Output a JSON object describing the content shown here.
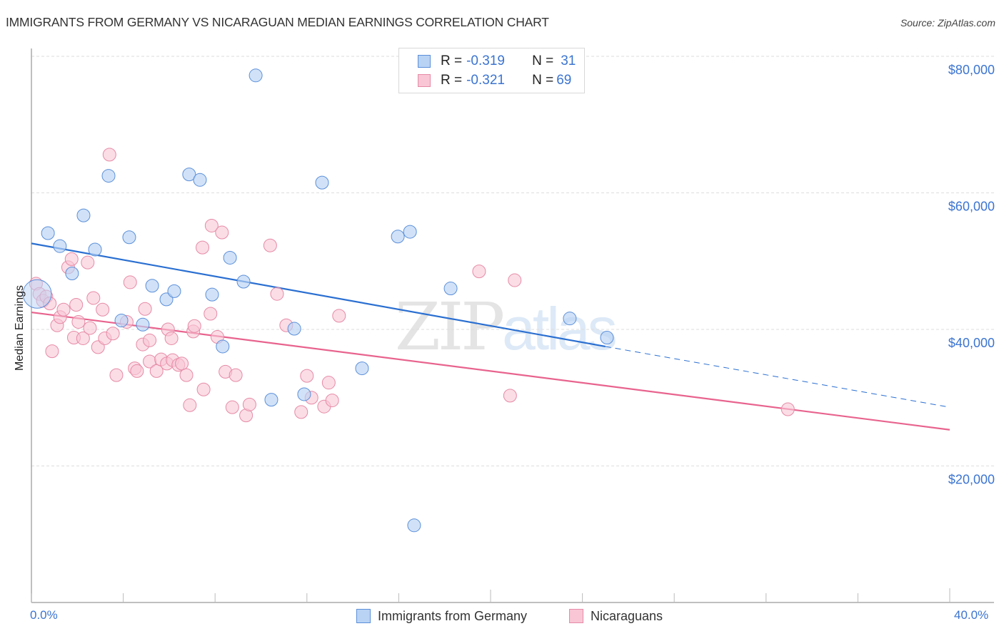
{
  "header": {
    "title": "IMMIGRANTS FROM GERMANY VS NICARAGUAN MEDIAN EARNINGS CORRELATION CHART",
    "source": "Source: ZipAtlas.com"
  },
  "stats": [
    {
      "r_label": "R = ",
      "r_value": "-0.319",
      "n_label": "N = ",
      "n_value": "31"
    },
    {
      "r_label": "R = ",
      "r_value": "-0.321",
      "n_label": "N = ",
      "n_value": "69"
    }
  ],
  "watermark": {
    "part1": "ZIP",
    "part2": "atlas"
  },
  "colors": {
    "germany_fill": "#b9d3f5",
    "germany_stroke": "#5b8fd9",
    "germany_line": "#2a6fd1",
    "nicaraguan_fill": "#f9c6d5",
    "nicaraguan_stroke": "#e68aa6",
    "nicaraguan_line": "#e8638e",
    "tick_text": "#3b74d1"
  },
  "chart_data": {
    "type": "scatter",
    "title": "IMMIGRANTS FROM GERMANY VS NICARAGUAN MEDIAN EARNINGS CORRELATION CHART",
    "xlabel": "",
    "ylabel": "Median Earnings",
    "xlim": [
      0,
      40
    ],
    "ylim": [
      0,
      82000
    ],
    "x_tick_labels": [
      "0.0%",
      "40.0%"
    ],
    "x_minor_ticks": [
      0,
      4,
      8,
      12,
      16,
      20,
      24,
      28,
      32,
      36,
      40
    ],
    "y_ticks": [
      20000,
      40000,
      60000,
      80000
    ],
    "y_tick_labels": [
      "$20,000",
      "$40,000",
      "$60,000",
      "$80,000"
    ],
    "grid": "horizontal-dashed",
    "legend_position": "bottom-center",
    "series": [
      {
        "name": "Immigrants from Germany",
        "r": -0.319,
        "n": 31,
        "trend": {
          "x0": 0,
          "y0": 52600,
          "x1": 25,
          "y1": 37500,
          "dashed_to_x": 40,
          "dashed_to_y": 28600
        },
        "points": [
          {
            "x": 0.25,
            "y": 45200,
            "big": true
          },
          {
            "x": 0.72,
            "y": 54100
          },
          {
            "x": 1.24,
            "y": 52200
          },
          {
            "x": 1.77,
            "y": 48200
          },
          {
            "x": 2.27,
            "y": 56700
          },
          {
            "x": 2.77,
            "y": 51700
          },
          {
            "x": 3.36,
            "y": 62500
          },
          {
            "x": 4.26,
            "y": 53500
          },
          {
            "x": 3.92,
            "y": 41300
          },
          {
            "x": 4.85,
            "y": 40700
          },
          {
            "x": 5.26,
            "y": 46400
          },
          {
            "x": 5.88,
            "y": 44400
          },
          {
            "x": 6.22,
            "y": 45600
          },
          {
            "x": 6.87,
            "y": 62700
          },
          {
            "x": 7.34,
            "y": 61900
          },
          {
            "x": 7.87,
            "y": 45100
          },
          {
            "x": 8.33,
            "y": 37500
          },
          {
            "x": 8.65,
            "y": 50500
          },
          {
            "x": 9.24,
            "y": 47000
          },
          {
            "x": 9.77,
            "y": 77200
          },
          {
            "x": 10.45,
            "y": 29700
          },
          {
            "x": 11.45,
            "y": 40100
          },
          {
            "x": 11.88,
            "y": 30500
          },
          {
            "x": 12.66,
            "y": 61500
          },
          {
            "x": 14.4,
            "y": 34300
          },
          {
            "x": 15.96,
            "y": 53600
          },
          {
            "x": 16.49,
            "y": 54300
          },
          {
            "x": 16.67,
            "y": 11300
          },
          {
            "x": 18.26,
            "y": 46000
          },
          {
            "x": 23.45,
            "y": 41600
          },
          {
            "x": 25.07,
            "y": 38800
          }
        ]
      },
      {
        "name": "Nicaraguans",
        "r": -0.321,
        "n": 69,
        "trend": {
          "x0": 0,
          "y0": 42500,
          "x1": 40,
          "y1": 25300
        },
        "points": [
          {
            "x": 0.2,
            "y": 46700
          },
          {
            "x": 0.35,
            "y": 45200
          },
          {
            "x": 0.5,
            "y": 44200
          },
          {
            "x": 0.65,
            "y": 44800
          },
          {
            "x": 0.8,
            "y": 43800
          },
          {
            "x": 1.12,
            "y": 40600
          },
          {
            "x": 1.25,
            "y": 41800
          },
          {
            "x": 1.4,
            "y": 42900
          },
          {
            "x": 1.6,
            "y": 49100
          },
          {
            "x": 1.75,
            "y": 50300
          },
          {
            "x": 1.85,
            "y": 38800
          },
          {
            "x": 1.95,
            "y": 43600
          },
          {
            "x": 2.05,
            "y": 41100
          },
          {
            "x": 2.25,
            "y": 38700
          },
          {
            "x": 2.45,
            "y": 49800
          },
          {
            "x": 2.55,
            "y": 40200
          },
          {
            "x": 2.7,
            "y": 44600
          },
          {
            "x": 2.9,
            "y": 37400
          },
          {
            "x": 3.1,
            "y": 42900
          },
          {
            "x": 3.2,
            "y": 38700
          },
          {
            "x": 3.55,
            "y": 39400
          },
          {
            "x": 3.7,
            "y": 33300
          },
          {
            "x": 3.4,
            "y": 65600
          },
          {
            "x": 4.15,
            "y": 41100
          },
          {
            "x": 4.3,
            "y": 46900
          },
          {
            "x": 4.5,
            "y": 34300
          },
          {
            "x": 4.6,
            "y": 33900
          },
          {
            "x": 4.85,
            "y": 37800
          },
          {
            "x": 4.95,
            "y": 43000
          },
          {
            "x": 5.15,
            "y": 38400
          },
          {
            "x": 5.15,
            "y": 35300
          },
          {
            "x": 5.45,
            "y": 33900
          },
          {
            "x": 5.65,
            "y": 35600
          },
          {
            "x": 5.9,
            "y": 35000
          },
          {
            "x": 5.95,
            "y": 40000
          },
          {
            "x": 6.1,
            "y": 38700
          },
          {
            "x": 6.15,
            "y": 35500
          },
          {
            "x": 6.4,
            "y": 34800
          },
          {
            "x": 6.55,
            "y": 35000
          },
          {
            "x": 6.75,
            "y": 33300
          },
          {
            "x": 6.9,
            "y": 28900
          },
          {
            "x": 7.05,
            "y": 39700
          },
          {
            "x": 7.1,
            "y": 40500
          },
          {
            "x": 7.45,
            "y": 52000
          },
          {
            "x": 7.5,
            "y": 31200
          },
          {
            "x": 7.8,
            "y": 42300
          },
          {
            "x": 7.85,
            "y": 55200
          },
          {
            "x": 8.1,
            "y": 38900
          },
          {
            "x": 8.3,
            "y": 54200
          },
          {
            "x": 8.45,
            "y": 33800
          },
          {
            "x": 8.75,
            "y": 28600
          },
          {
            "x": 8.9,
            "y": 33300
          },
          {
            "x": 9.35,
            "y": 27400
          },
          {
            "x": 9.5,
            "y": 29000
          },
          {
            "x": 10.4,
            "y": 52300
          },
          {
            "x": 10.7,
            "y": 45200
          },
          {
            "x": 11.1,
            "y": 40600
          },
          {
            "x": 11.75,
            "y": 27900
          },
          {
            "x": 12.0,
            "y": 33200
          },
          {
            "x": 12.2,
            "y": 30000
          },
          {
            "x": 12.75,
            "y": 28700
          },
          {
            "x": 12.95,
            "y": 32200
          },
          {
            "x": 13.1,
            "y": 29600
          },
          {
            "x": 13.4,
            "y": 42000
          },
          {
            "x": 19.5,
            "y": 48500
          },
          {
            "x": 20.85,
            "y": 30300
          },
          {
            "x": 21.05,
            "y": 47200
          },
          {
            "x": 32.95,
            "y": 28300
          },
          {
            "x": 0.9,
            "y": 36800
          }
        ]
      }
    ]
  }
}
